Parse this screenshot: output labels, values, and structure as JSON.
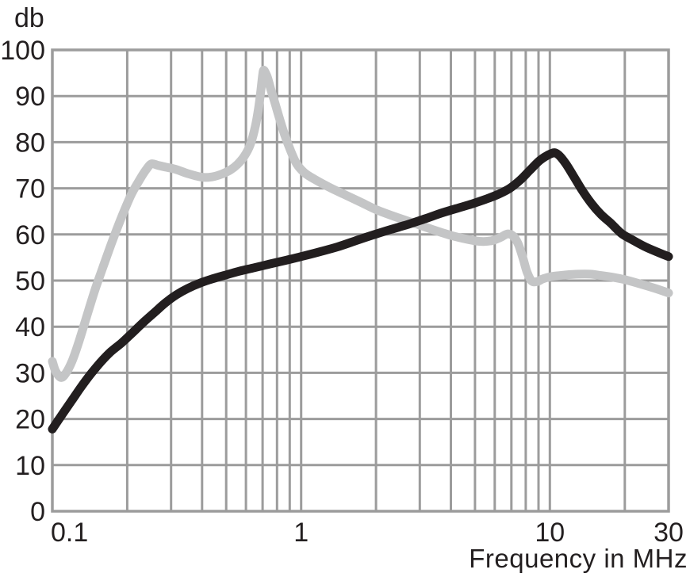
{
  "chart_data": {
    "type": "line",
    "title": "",
    "xlabel": "Frequency in MHz",
    "ylabel": "db",
    "x_scale": "log",
    "x_range_mhz": [
      0.1,
      30
    ],
    "y_range_db": [
      0,
      100
    ],
    "grid": true,
    "gridline_color": "#9c9c9c",
    "text_color": "#231f20",
    "background_color": "#ffffff",
    "x_ticks": [
      {
        "value": 0.1,
        "label": "0.1"
      },
      {
        "value": 1,
        "label": "1"
      },
      {
        "value": 10,
        "label": "10"
      },
      {
        "value": 30,
        "label": "30"
      }
    ],
    "y_ticks": [
      {
        "value": 100,
        "label": "100"
      },
      {
        "value": 90,
        "label": "90"
      },
      {
        "value": 80,
        "label": "80"
      },
      {
        "value": 70,
        "label": "70"
      },
      {
        "value": 60,
        "label": "60"
      },
      {
        "value": 50,
        "label": "50"
      },
      {
        "value": 40,
        "label": "40"
      },
      {
        "value": 30,
        "label": "30"
      },
      {
        "value": 20,
        "label": "20"
      },
      {
        "value": 10,
        "label": "10"
      },
      {
        "value": 0,
        "label": "0"
      }
    ],
    "x_gridlines_mhz": [
      0.2,
      0.3,
      0.4,
      0.5,
      0.6,
      0.7,
      0.8,
      0.9,
      1,
      2,
      3,
      4,
      5,
      6,
      7,
      8,
      9,
      10,
      20
    ],
    "y_gridlines_db": [
      10,
      20,
      30,
      40,
      50,
      60,
      70,
      80,
      90
    ],
    "series": [
      {
        "name": "gray-response-curve",
        "color": "#c4c5c6",
        "stroke_width": 11,
        "points_mhz_db": [
          [
            0.1,
            32.5
          ],
          [
            0.103,
            30.4
          ],
          [
            0.108,
            29.0
          ],
          [
            0.113,
            29.8
          ],
          [
            0.12,
            32.5
          ],
          [
            0.128,
            36.8
          ],
          [
            0.137,
            42.0
          ],
          [
            0.148,
            47.8
          ],
          [
            0.16,
            53.0
          ],
          [
            0.174,
            58.5
          ],
          [
            0.19,
            63.8
          ],
          [
            0.207,
            68.5
          ],
          [
            0.224,
            71.8
          ],
          [
            0.238,
            74.0
          ],
          [
            0.25,
            75.3
          ],
          [
            0.265,
            75.0
          ],
          [
            0.285,
            74.6
          ],
          [
            0.31,
            74.2
          ],
          [
            0.35,
            73.2
          ],
          [
            0.4,
            72.4
          ],
          [
            0.44,
            72.5
          ],
          [
            0.48,
            73.1
          ],
          [
            0.52,
            74.0
          ],
          [
            0.555,
            75.2
          ],
          [
            0.59,
            76.9
          ],
          [
            0.625,
            79.5
          ],
          [
            0.655,
            83.5
          ],
          [
            0.675,
            87.5
          ],
          [
            0.69,
            91.5
          ],
          [
            0.7,
            94.5
          ],
          [
            0.707,
            95.6
          ],
          [
            0.72,
            95.0
          ],
          [
            0.735,
            93.8
          ],
          [
            0.755,
            91.5
          ],
          [
            0.78,
            89.0
          ],
          [
            0.815,
            85.5
          ],
          [
            0.86,
            81.5
          ],
          [
            0.91,
            78.0
          ],
          [
            0.96,
            75.3
          ],
          [
            1.03,
            73.4
          ],
          [
            1.13,
            72.0
          ],
          [
            1.3,
            70.2
          ],
          [
            1.5,
            68.6
          ],
          [
            1.75,
            66.9
          ],
          [
            2.0,
            65.4
          ],
          [
            2.4,
            63.8
          ],
          [
            2.9,
            62.3
          ],
          [
            3.4,
            61.0
          ],
          [
            4.0,
            59.8
          ],
          [
            4.6,
            59.0
          ],
          [
            5.2,
            58.5
          ],
          [
            5.8,
            58.6
          ],
          [
            6.3,
            59.3
          ],
          [
            6.75,
            60.1
          ],
          [
            7.1,
            59.7
          ],
          [
            7.45,
            58.0
          ],
          [
            7.8,
            54.8
          ],
          [
            8.1,
            51.8
          ],
          [
            8.45,
            49.9
          ],
          [
            8.9,
            49.8
          ],
          [
            9.4,
            50.4
          ],
          [
            10.2,
            50.9
          ],
          [
            11.5,
            51.2
          ],
          [
            13.0,
            51.4
          ],
          [
            14.5,
            51.4
          ],
          [
            16.0,
            51.1
          ],
          [
            18.0,
            50.7
          ],
          [
            20.0,
            50.2
          ],
          [
            23.0,
            49.3
          ],
          [
            26.5,
            48.3
          ],
          [
            30.0,
            47.3
          ]
        ]
      },
      {
        "name": "black-response-curve",
        "color": "#221e1f",
        "stroke_width": 11,
        "points_mhz_db": [
          [
            0.1,
            17.8
          ],
          [
            0.108,
            20.5
          ],
          [
            0.118,
            23.5
          ],
          [
            0.13,
            26.8
          ],
          [
            0.143,
            29.8
          ],
          [
            0.157,
            32.4
          ],
          [
            0.172,
            34.6
          ],
          [
            0.19,
            36.5
          ],
          [
            0.21,
            38.7
          ],
          [
            0.235,
            41.2
          ],
          [
            0.26,
            43.3
          ],
          [
            0.285,
            45.2
          ],
          [
            0.315,
            46.9
          ],
          [
            0.35,
            48.3
          ],
          [
            0.39,
            49.4
          ],
          [
            0.43,
            50.2
          ],
          [
            0.49,
            51.1
          ],
          [
            0.56,
            52.0
          ],
          [
            0.65,
            52.8
          ],
          [
            0.75,
            53.6
          ],
          [
            0.87,
            54.4
          ],
          [
            1.0,
            55.2
          ],
          [
            1.2,
            56.3
          ],
          [
            1.4,
            57.3
          ],
          [
            1.65,
            58.6
          ],
          [
            1.95,
            59.9
          ],
          [
            2.3,
            61.1
          ],
          [
            2.7,
            62.2
          ],
          [
            3.15,
            63.4
          ],
          [
            3.65,
            64.6
          ],
          [
            4.2,
            65.6
          ],
          [
            4.85,
            66.6
          ],
          [
            5.5,
            67.6
          ],
          [
            6.2,
            68.7
          ],
          [
            6.9,
            70.0
          ],
          [
            7.6,
            71.8
          ],
          [
            8.3,
            73.9
          ],
          [
            9.0,
            75.8
          ],
          [
            9.6,
            76.9
          ],
          [
            10.1,
            77.5
          ],
          [
            10.5,
            77.7
          ],
          [
            11.0,
            76.9
          ],
          [
            11.6,
            75.3
          ],
          [
            12.4,
            72.8
          ],
          [
            13.4,
            69.8
          ],
          [
            14.6,
            66.9
          ],
          [
            16.0,
            64.4
          ],
          [
            17.6,
            62.4
          ],
          [
            19.4,
            60.2
          ],
          [
            21.5,
            58.8
          ],
          [
            24.0,
            57.4
          ],
          [
            27.0,
            56.2
          ],
          [
            30.0,
            55.2
          ]
        ]
      }
    ]
  }
}
